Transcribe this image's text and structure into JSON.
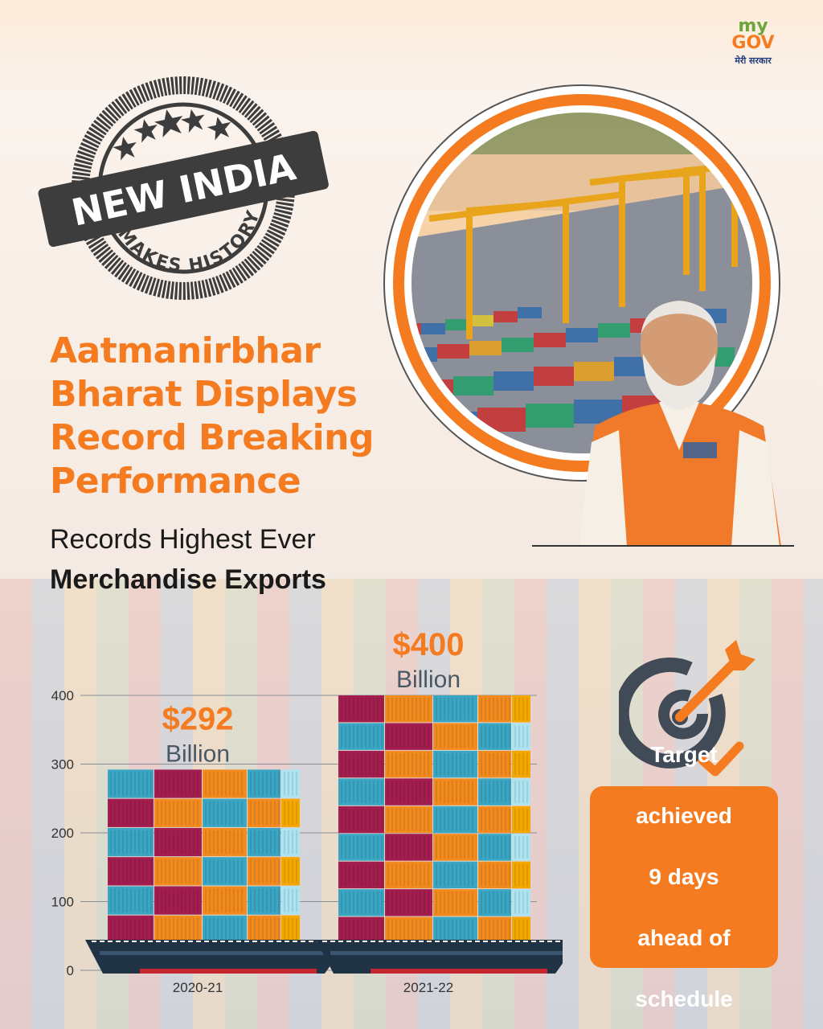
{
  "logo": {
    "line1": "my",
    "line2": "GOV",
    "line3": "मेरी सरकार"
  },
  "stamp": {
    "main": "NEW INDIA",
    "arc": "MAKES HISTORY!"
  },
  "headline": {
    "line1": "Aatmanirbhar",
    "line2": "Bharat Displays",
    "line3": "Record Breaking",
    "line4": "Performance"
  },
  "subheadline": {
    "line1": "Records Highest Ever",
    "line2": "Merchandise Exports"
  },
  "target_box": {
    "line1": "Target",
    "line2": "achieved",
    "line3": "9 days",
    "line4": "ahead of",
    "line5": "schedule"
  },
  "colors": {
    "accent": "#f47b20",
    "grey_text": "#4a5866",
    "ship": "#1f3345",
    "crimson": "#a31e4f",
    "teal": "#3aa6c4",
    "light_cyan": "#aee4f2",
    "gold": "#f5a700"
  },
  "icons": [
    "target-with-arrow-icon",
    "checkmark-icon"
  ],
  "chart_data": {
    "type": "bar",
    "categories": [
      "2020-21",
      "2021-22"
    ],
    "values": [
      292,
      400
    ],
    "value_labels": [
      {
        "amount": "$292",
        "unit": "Billion"
      },
      {
        "amount": "$400",
        "unit": "Billion"
      }
    ],
    "y_ticks": [
      "0",
      "100",
      "200",
      "300",
      "400"
    ],
    "ylim": [
      0,
      400
    ],
    "grid": true,
    "title": "",
    "xlabel": "",
    "ylabel": ""
  }
}
